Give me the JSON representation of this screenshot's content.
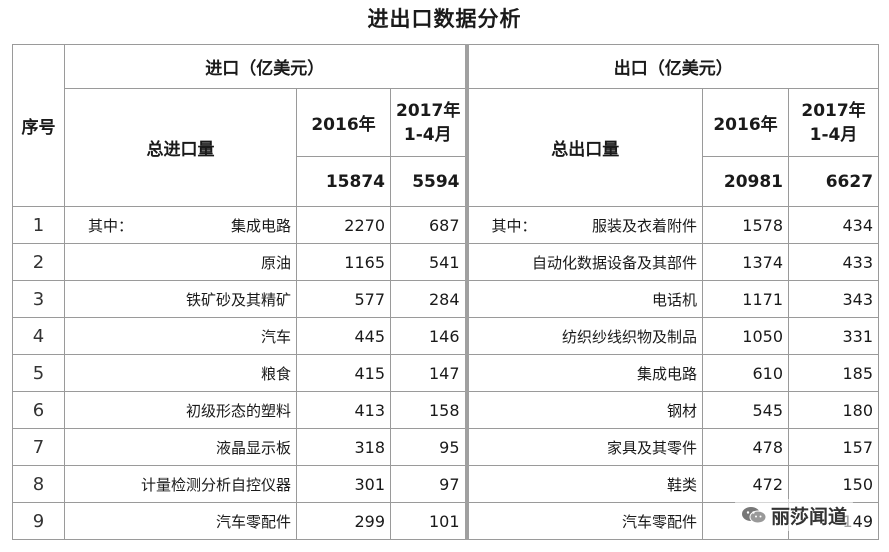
{
  "title": "进出口数据分析",
  "headers": {
    "index": "序号",
    "import_group": "进口（亿美元）",
    "export_group": "出口（亿美元）",
    "import_total_label": "总进口量",
    "export_total_label": "总出口量",
    "year_2016": "2016年",
    "year_2017_line1": "2017年",
    "year_2017_line2": "1-4月"
  },
  "totals": {
    "import_2016": "15874",
    "import_2017": "5594",
    "export_2016": "20981",
    "export_2017": "6627"
  },
  "rows": [
    {
      "idx": "1",
      "import_prefix": "其中：",
      "import_name": "集成电路",
      "import_2016": "2270",
      "import_2017": "687",
      "export_prefix": "其中：",
      "export_name": "服装及衣着附件",
      "export_2016": "1578",
      "export_2017": "434"
    },
    {
      "idx": "2",
      "import_name": "原油",
      "import_2016": "1165",
      "import_2017": "541",
      "export_name": "自动化数据设备及其部件",
      "export_2016": "1374",
      "export_2017": "433"
    },
    {
      "idx": "3",
      "import_name": "铁矿砂及其精矿",
      "import_2016": "577",
      "import_2017": "284",
      "export_name": "电话机",
      "export_2016": "1171",
      "export_2017": "343"
    },
    {
      "idx": "4",
      "import_name": "汽车",
      "import_2016": "445",
      "import_2017": "146",
      "export_name": "纺织纱线织物及制品",
      "export_2016": "1050",
      "export_2017": "331"
    },
    {
      "idx": "5",
      "import_name": "粮食",
      "import_2016": "415",
      "import_2017": "147",
      "export_name": "集成电路",
      "export_2016": "610",
      "export_2017": "185"
    },
    {
      "idx": "6",
      "import_name": "初级形态的塑料",
      "import_2016": "413",
      "import_2017": "158",
      "export_name": "钢材",
      "export_2016": "545",
      "export_2017": "180"
    },
    {
      "idx": "7",
      "import_name": "液晶显示板",
      "import_2016": "318",
      "import_2017": "95",
      "export_name": "家具及其零件",
      "export_2016": "478",
      "export_2017": "157"
    },
    {
      "idx": "8",
      "import_name": "计量检测分析自控仪器",
      "import_2016": "301",
      "import_2017": "97",
      "export_name": "鞋类",
      "export_2016": "472",
      "export_2017": "150"
    },
    {
      "idx": "9",
      "import_name": "汽车零配件",
      "import_2016": "299",
      "import_2017": "101",
      "export_name": "汽车零配件",
      "export_2016": "",
      "export_2017": "149"
    }
  ],
  "watermark": "丽莎闻道"
}
